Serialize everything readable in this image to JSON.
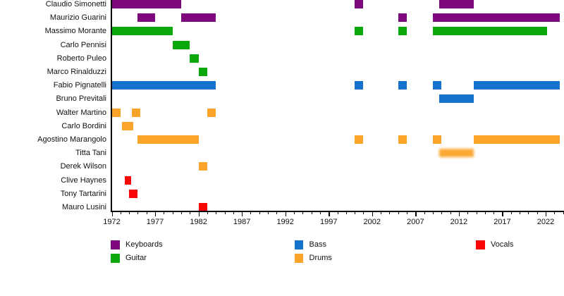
{
  "chart_data": {
    "type": "timeline",
    "x_axis": {
      "major_tick_years": [
        1972,
        1977,
        1982,
        1987,
        1992,
        1997,
        2002,
        2007,
        2012,
        2017,
        2022
      ],
      "tick_labels": [
        "1972",
        "1977",
        "1982",
        "1987",
        "1992",
        "1997",
        "2002",
        "2007",
        "2012",
        "2017",
        "2022"
      ],
      "minor_tick_interval": 1,
      "range": [
        1972,
        2024
      ]
    },
    "legend": [
      {
        "label": "Keyboards",
        "color": "#7D077D",
        "column": 0,
        "row": 0
      },
      {
        "label": "Guitar",
        "color": "#0BA80B",
        "column": 0,
        "row": 1
      },
      {
        "label": "Bass",
        "color": "#1572CD",
        "column": 1,
        "row": 0
      },
      {
        "label": "Drums",
        "color": "#FBA42A",
        "column": 1,
        "row": 1
      },
      {
        "label": "Vocals",
        "color": "#F90606",
        "column": 2,
        "row": 0
      }
    ],
    "rows": [
      {
        "name": "Claudio Simonetti",
        "instrument": "Keyboards",
        "intervals": [
          [
            1972,
            1980
          ],
          [
            2000,
            2001
          ],
          [
            2009.7,
            2013.7
          ]
        ]
      },
      {
        "name": "Maurizio Guarini",
        "instrument": "Keyboards",
        "intervals": [
          [
            1975,
            1977
          ],
          [
            1980,
            1984
          ],
          [
            2005,
            2006
          ],
          [
            2009,
            2023.6
          ]
        ]
      },
      {
        "name": "Massimo Morante",
        "instrument": "Guitar",
        "intervals": [
          [
            1972,
            1979
          ],
          [
            2000,
            2001
          ],
          [
            2005,
            2006
          ],
          [
            2009,
            2022.2
          ]
        ]
      },
      {
        "name": "Carlo Pennisi",
        "instrument": "Guitar",
        "intervals": [
          [
            1979,
            1981
          ]
        ]
      },
      {
        "name": "Roberto Puleo",
        "instrument": "Guitar",
        "intervals": [
          [
            1981,
            1982
          ]
        ]
      },
      {
        "name": "Marco Rinalduzzi",
        "instrument": "Guitar",
        "intervals": [
          [
            1982,
            1983
          ]
        ]
      },
      {
        "name": "Fabio Pignatelli",
        "instrument": "Bass",
        "intervals": [
          [
            1972,
            1984
          ],
          [
            2000,
            2001
          ],
          [
            2005,
            2006
          ],
          [
            2009,
            2010
          ],
          [
            2013.7,
            2023.6
          ]
        ]
      },
      {
        "name": "Bruno Previtali",
        "instrument": "Bass",
        "intervals": [
          [
            2009.7,
            2013.7
          ]
        ]
      },
      {
        "name": "Walter Martino",
        "instrument": "Drums",
        "intervals": [
          [
            1972,
            1973
          ],
          [
            1974.3,
            1975.3
          ],
          [
            1983,
            1984
          ]
        ]
      },
      {
        "name": "Carlo Bordini",
        "instrument": "Drums",
        "intervals": [
          [
            1973.2,
            1974.5
          ]
        ]
      },
      {
        "name": "Agostino Marangolo",
        "instrument": "Drums",
        "intervals": [
          [
            1975,
            1982
          ],
          [
            2000,
            2001
          ],
          [
            2005,
            2006
          ],
          [
            2009,
            2010
          ],
          [
            2013.7,
            2023.6
          ]
        ]
      },
      {
        "name": "Titta Tani",
        "instrument": "Drums",
        "intervals": [
          [
            2009.7,
            2013.7
          ]
        ],
        "blurred": true
      },
      {
        "name": "Derek Wilson",
        "instrument": "Drums",
        "intervals": [
          [
            1982,
            1983
          ]
        ]
      },
      {
        "name": "Clive Haynes",
        "instrument": "Vocals",
        "intervals": [
          [
            1973.5,
            1974.2
          ]
        ]
      },
      {
        "name": "Tony Tartarini",
        "instrument": "Vocals",
        "intervals": [
          [
            1974,
            1975
          ]
        ]
      },
      {
        "name": "Mauro Lusini",
        "instrument": "Vocals",
        "intervals": [
          [
            1982,
            1983
          ]
        ]
      }
    ]
  }
}
